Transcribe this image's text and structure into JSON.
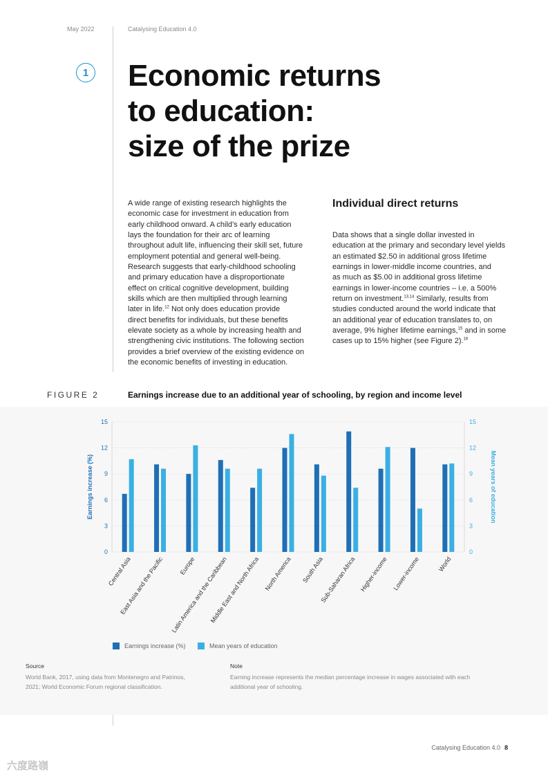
{
  "header": {
    "date": "May 2022",
    "report": "Catalysing Education 4.0"
  },
  "chapter": {
    "number": "1",
    "title_lines": [
      "Economic returns",
      "to education:",
      "size of the prize"
    ]
  },
  "intro_lines": [
    "A wide range of existing research highlights the",
    "economic case for investment in education from",
    "early childhood onward. A child’s early education",
    "lays the foundation for their arc of learning",
    "throughout adult life, influencing their skill set, future",
    "employment potential and general well-being.",
    "Research suggests that early-childhood schooling",
    "and primary education have a disproportionate",
    "effect on critical cognitive development, building",
    "skills which are then multiplied through learning",
    "later in life.",
    "12",
    " Not only does education provide",
    "direct benefits for individuals, but these benefits",
    "elevate society as a whole by increasing health and",
    "strengthening civic institutions. The following section",
    "provides a brief overview of the existing evidence on",
    "the economic benefits of investing in education."
  ],
  "section": {
    "heading": "Individual direct returns",
    "lines": [
      "Data shows that a single dollar invested in",
      "education at the primary and secondary level yields",
      "an estimated $2.50 in additional gross lifetime",
      "earnings in lower-middle income countries, and",
      "as much as $5.00 in additional gross lifetime",
      "earnings in lower-income countries – i.e. a 500%",
      "return on investment.",
      "13,14",
      " Similarly, results from",
      "studies conducted around the world indicate that",
      "an additional year of education translates to, on",
      "average, 9% higher lifetime earnings,",
      "15",
      " and in some",
      "cases up to 15% higher (see Figure 2).",
      "16"
    ]
  },
  "figure": {
    "label": "FIGURE 2",
    "title": "Earnings increase due to an additional year of schooling, by region and income level"
  },
  "chart_data": {
    "type": "bar",
    "categories": [
      "Central Asia",
      "East Asia and the Pacific",
      "Europe",
      "Latin America and the Caribbean",
      "Middle East and North Africa",
      "North America",
      "South Asia",
      "Sub-Saharan Africa",
      "Higher-income",
      "Lower-income",
      "World"
    ],
    "series": [
      {
        "name": "Earnings increase (%)",
        "color": "#1f6fb5",
        "values": [
          6.7,
          10.1,
          9.0,
          10.6,
          7.4,
          12.0,
          10.1,
          13.9,
          9.6,
          12.0,
          10.1
        ]
      },
      {
        "name": "Mean years of education",
        "color": "#3ab0e2",
        "values": [
          10.7,
          9.6,
          12.3,
          9.6,
          9.6,
          13.6,
          8.8,
          7.4,
          12.1,
          5.0,
          10.2
        ]
      }
    ],
    "ylabel": "Earnings increase (%)",
    "y2label": "Mean years of education",
    "ylim": [
      0,
      15
    ],
    "yticks": [
      "0",
      "3",
      "6",
      "9",
      "12",
      "15"
    ],
    "grid": true,
    "legend": "bottom-left"
  },
  "source": {
    "heading": "Source",
    "lines": [
      "World Bank, 2017, using data from Montenegro and Patrinos,",
      "2021; World Economic Forum regional classification."
    ]
  },
  "note": {
    "heading": "Note",
    "lines": [
      "Earning increase represents the median percentage increase in wages associated with each",
      "additional year of schooling."
    ]
  },
  "footer": {
    "report": "Catalysing Education 4.0",
    "page": "8"
  },
  "watermark": "六度路嶺"
}
